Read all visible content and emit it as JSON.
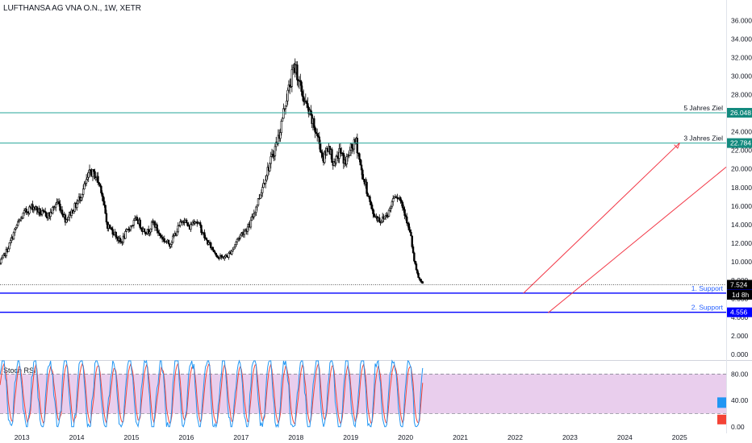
{
  "symbol_title": "LUFTHANSA AG VNA O.N., 1W, XETR",
  "stoch_label": "Stoch RSI",
  "colors": {
    "candle": "#000000",
    "teal_line": "#26a69a",
    "teal_badge": "#138a7e",
    "support_line": "#0000ff",
    "arrow": "#f23645",
    "stoch_k": "#2196f3",
    "stoch_d": "#f44336",
    "stoch_band": "#e1bee7",
    "axis_text": "#131722"
  },
  "levels": [
    {
      "label": "5 Jahres Ziel",
      "value": 26.048,
      "badge": "26.048"
    },
    {
      "label": "3 Jahres Ziel",
      "value": 22.784,
      "badge": "22.784"
    },
    {
      "label": "1. Support",
      "value": 6.62,
      "badge": "6.620"
    },
    {
      "label": "2. Support",
      "value": 4.556,
      "badge": "4.556"
    }
  ],
  "last_price": {
    "value": 7.524,
    "badge": "7.524",
    "countdown": "1d 8h"
  },
  "chart_data": {
    "type": "candlestick",
    "title": "LUFTHANSA AG VNA O.N., 1W, XETR",
    "y_ticks": [
      "36.000",
      "34.000",
      "32.000",
      "30.000",
      "28.000",
      "26.000",
      "24.000",
      "22.000",
      "20.000",
      "18.000",
      "16.000",
      "14.000",
      "12.000",
      "10.000",
      "8.000",
      "6.000",
      "4.000",
      "2.000",
      "0.000"
    ],
    "y_tick_values": [
      36,
      34,
      32,
      30,
      28,
      26,
      24,
      22,
      20,
      18,
      16,
      14,
      12,
      10,
      8,
      6,
      4,
      2,
      0
    ],
    "ylim": [
      -0.5,
      37.5
    ],
    "x_ticks": [
      "2013",
      "2014",
      "2015",
      "2016",
      "2017",
      "2018",
      "2019",
      "2020",
      "2021",
      "2022",
      "2023",
      "2024",
      "2025"
    ],
    "xlim": [
      2012.6,
      2025.85
    ],
    "price_anchors": [
      [
        2012.6,
        9.8
      ],
      [
        2012.75,
        11.5
      ],
      [
        2012.9,
        13.8
      ],
      [
        2013.05,
        15.3
      ],
      [
        2013.2,
        16.0
      ],
      [
        2013.35,
        15.2
      ],
      [
        2013.5,
        15.0
      ],
      [
        2013.65,
        16.5
      ],
      [
        2013.8,
        14.5
      ],
      [
        2014.0,
        16.2
      ],
      [
        2014.1,
        17.5
      ],
      [
        2014.25,
        19.7
      ],
      [
        2014.35,
        19.2
      ],
      [
        2014.45,
        17.8
      ],
      [
        2014.55,
        14.0
      ],
      [
        2014.7,
        13.0
      ],
      [
        2014.8,
        12.0
      ],
      [
        2014.95,
        13.6
      ],
      [
        2015.1,
        14.6
      ],
      [
        2015.2,
        13.5
      ],
      [
        2015.3,
        13.2
      ],
      [
        2015.4,
        14.3
      ],
      [
        2015.5,
        13.0
      ],
      [
        2015.6,
        12.3
      ],
      [
        2015.7,
        11.9
      ],
      [
        2015.85,
        13.6
      ],
      [
        2015.95,
        14.7
      ],
      [
        2016.05,
        13.6
      ],
      [
        2016.15,
        14.6
      ],
      [
        2016.25,
        13.8
      ],
      [
        2016.35,
        12.4
      ],
      [
        2016.5,
        11.2
      ],
      [
        2016.6,
        10.4
      ],
      [
        2016.75,
        10.6
      ],
      [
        2016.85,
        11.4
      ],
      [
        2016.95,
        12.6
      ],
      [
        2017.05,
        13.3
      ],
      [
        2017.15,
        13.8
      ],
      [
        2017.3,
        16.4
      ],
      [
        2017.45,
        19.3
      ],
      [
        2017.55,
        21.0
      ],
      [
        2017.7,
        23.8
      ],
      [
        2017.8,
        27.0
      ],
      [
        2017.9,
        29.3
      ],
      [
        2017.95,
        30.6
      ],
      [
        2018.0,
        31.0
      ],
      [
        2018.05,
        29.4
      ],
      [
        2018.15,
        27.4
      ],
      [
        2018.3,
        25.0
      ],
      [
        2018.4,
        23.4
      ],
      [
        2018.5,
        21.0
      ],
      [
        2018.6,
        22.6
      ],
      [
        2018.7,
        20.2
      ],
      [
        2018.8,
        22.0
      ],
      [
        2018.9,
        20.6
      ],
      [
        2019.0,
        22.1
      ],
      [
        2019.1,
        22.9
      ],
      [
        2019.2,
        19.6
      ],
      [
        2019.3,
        17.6
      ],
      [
        2019.4,
        15.2
      ],
      [
        2019.55,
        14.4
      ],
      [
        2019.7,
        15.4
      ],
      [
        2019.8,
        17.4
      ],
      [
        2019.9,
        16.8
      ],
      [
        2020.0,
        15.1
      ],
      [
        2020.05,
        13.7
      ],
      [
        2020.1,
        12.6
      ],
      [
        2020.15,
        10.3
      ],
      [
        2020.2,
        8.9
      ],
      [
        2020.25,
        8.1
      ],
      [
        2020.3,
        7.6
      ],
      [
        2020.33,
        7.524
      ]
    ],
    "stoch_rsi": {
      "y_ticks": [
        "80.00",
        "40.00",
        "0.00"
      ],
      "y_tick_values": [
        80,
        40,
        0
      ],
      "band": [
        20,
        80
      ],
      "ylim": [
        -10,
        100
      ],
      "last_k": 36.0,
      "last_d": 11.0
    },
    "trend_arrows": [
      {
        "from": [
          2022.15,
          6.6
        ],
        "to": [
          2025.0,
          22.8
        ]
      },
      {
        "from": [
          2022.6,
          4.5
        ],
        "to": [
          2025.85,
          20.2
        ]
      }
    ]
  }
}
